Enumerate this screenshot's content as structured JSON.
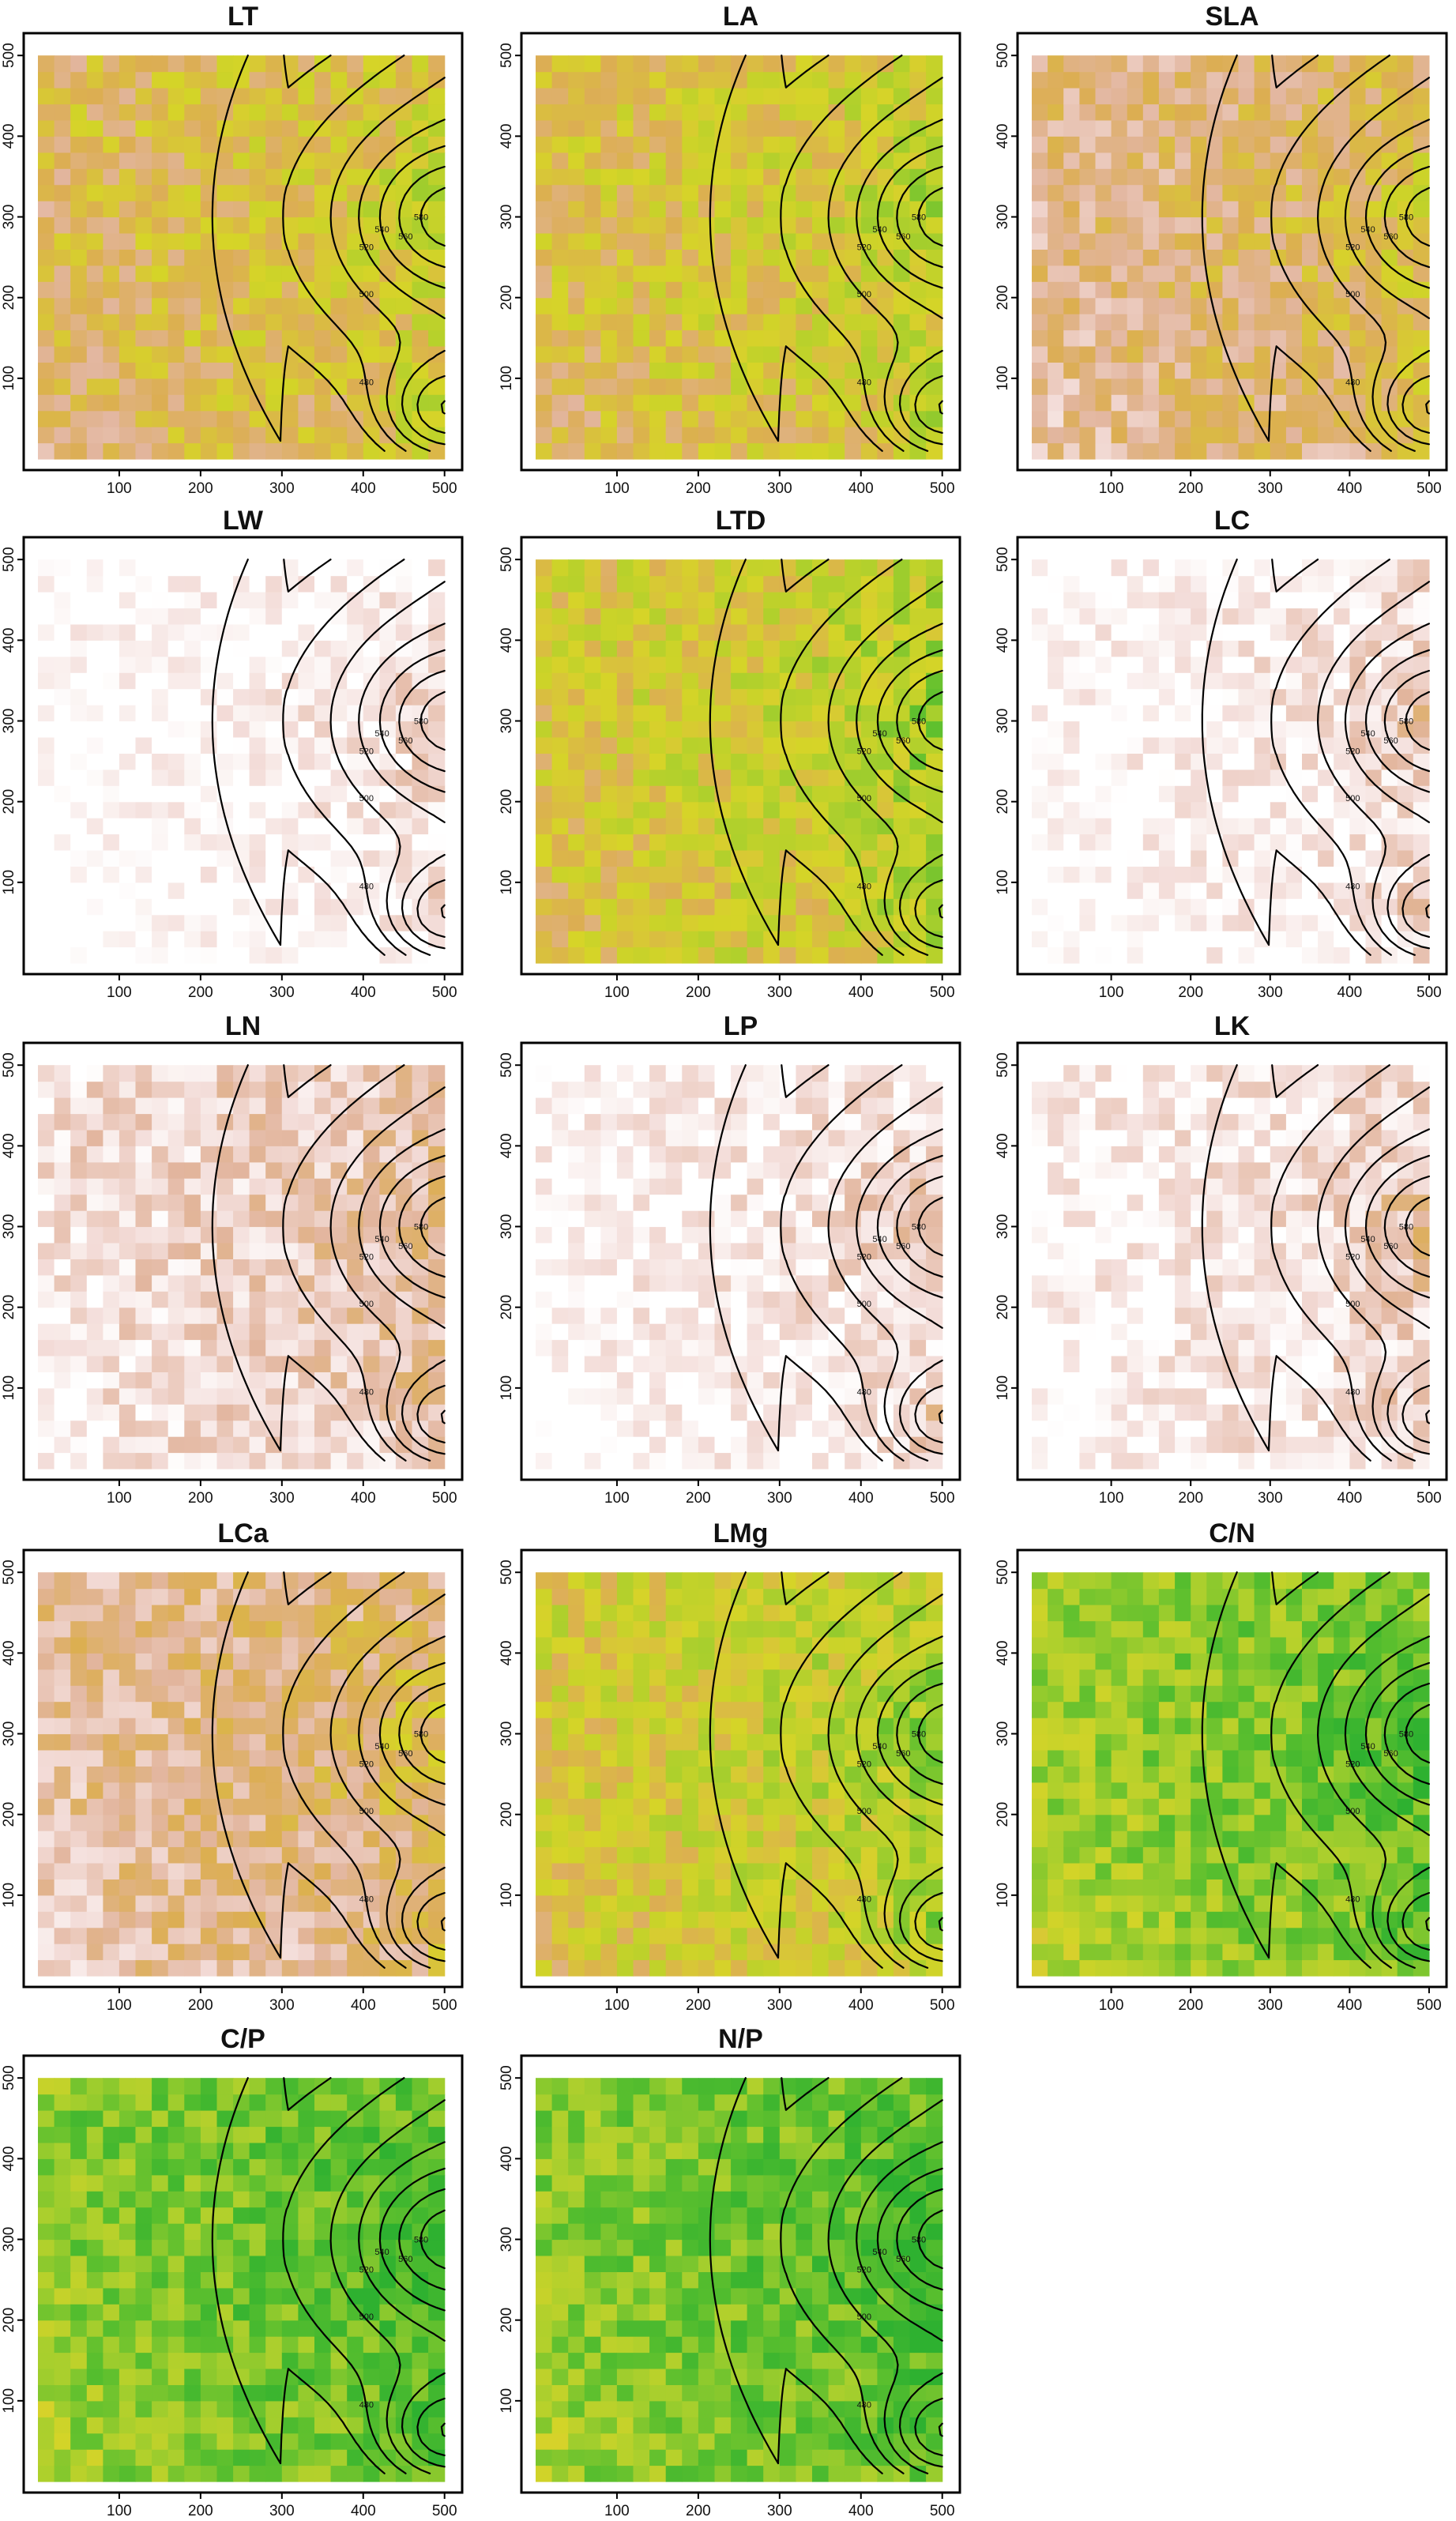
{
  "figure": {
    "colors": {
      "ramp": [
        "#2eb130",
        "#5bbf2e",
        "#a9cf2d",
        "#d6d428",
        "#dcae52",
        "#e2b59d",
        "#f3dcd8",
        "#ffffff"
      ],
      "contour": "#000000",
      "frame": "#000000"
    }
  },
  "chart_data": [
    {
      "type": "heatmap",
      "title": "LT",
      "ramp_shift": 0.0,
      "x_ticks": [
        100,
        200,
        300,
        400,
        500
      ],
      "y_ticks": [
        100,
        200,
        300,
        400,
        500
      ],
      "xlim": [
        0,
        510
      ],
      "ylim": [
        0,
        510
      ],
      "contour_levels": [
        460,
        480,
        500,
        520,
        540,
        560,
        580,
        600,
        620
      ]
    },
    {
      "type": "heatmap",
      "title": "LA",
      "ramp_shift": -0.05,
      "x_ticks": [
        100,
        200,
        300,
        400,
        500
      ],
      "y_ticks": [
        100,
        200,
        300,
        400,
        500
      ],
      "xlim": [
        0,
        510
      ],
      "ylim": [
        0,
        510
      ],
      "contour_levels": [
        460,
        480,
        500,
        520,
        540,
        560,
        580,
        600,
        620
      ]
    },
    {
      "type": "heatmap",
      "title": "SLA",
      "ramp_shift": 0.1,
      "x_ticks": [
        100,
        200,
        300,
        400,
        500
      ],
      "y_ticks": [
        100,
        200,
        300,
        400,
        500
      ],
      "xlim": [
        0,
        510
      ],
      "ylim": [
        0,
        510
      ],
      "contour_levels": [
        460,
        480,
        500,
        520,
        540,
        560,
        580,
        600,
        620
      ]
    },
    {
      "type": "heatmap",
      "title": "LW",
      "ramp_shift": 0.45,
      "x_ticks": [
        100,
        200,
        300,
        400,
        500
      ],
      "y_ticks": [
        100,
        200,
        300,
        400,
        500
      ],
      "xlim": [
        0,
        510
      ],
      "ylim": [
        0,
        510
      ],
      "contour_levels": [
        460,
        480,
        500,
        520,
        540,
        560,
        580,
        600,
        620
      ]
    },
    {
      "type": "heatmap",
      "title": "LTD",
      "ramp_shift": -0.1,
      "x_ticks": [
        100,
        200,
        300,
        400,
        500
      ],
      "y_ticks": [
        100,
        200,
        300,
        400,
        500
      ],
      "xlim": [
        0,
        510
      ],
      "ylim": [
        0,
        510
      ],
      "contour_levels": [
        460,
        480,
        500,
        520,
        540,
        560,
        580,
        600,
        620
      ]
    },
    {
      "type": "heatmap",
      "title": "LC",
      "ramp_shift": 0.42,
      "x_ticks": [
        100,
        200,
        300,
        400,
        500
      ],
      "y_ticks": [
        100,
        200,
        300,
        400,
        500
      ],
      "xlim": [
        0,
        510
      ],
      "ylim": [
        0,
        510
      ],
      "contour_levels": [
        460,
        480,
        500,
        520,
        540,
        560,
        580,
        600,
        620
      ]
    },
    {
      "type": "heatmap",
      "title": "LN",
      "ramp_shift": 0.3,
      "x_ticks": [
        100,
        200,
        300,
        400,
        500
      ],
      "y_ticks": [
        100,
        200,
        300,
        400,
        500
      ],
      "xlim": [
        0,
        510
      ],
      "ylim": [
        0,
        510
      ],
      "contour_levels": [
        460,
        480,
        500,
        520,
        540,
        560,
        580,
        600,
        620
      ]
    },
    {
      "type": "heatmap",
      "title": "LP",
      "ramp_shift": 0.4,
      "x_ticks": [
        100,
        200,
        300,
        400,
        500
      ],
      "y_ticks": [
        100,
        200,
        300,
        400,
        500
      ],
      "xlim": [
        0,
        510
      ],
      "ylim": [
        0,
        510
      ],
      "contour_levels": [
        460,
        480,
        500,
        520,
        540,
        560,
        580,
        600,
        620
      ]
    },
    {
      "type": "heatmap",
      "title": "LK",
      "ramp_shift": 0.38,
      "x_ticks": [
        100,
        200,
        300,
        400,
        500
      ],
      "y_ticks": [
        100,
        200,
        300,
        400,
        500
      ],
      "xlim": [
        0,
        510
      ],
      "ylim": [
        0,
        510
      ],
      "contour_levels": [
        460,
        480,
        500,
        520,
        540,
        560,
        580,
        600,
        620
      ]
    },
    {
      "type": "heatmap",
      "title": "LCa",
      "ramp_shift": 0.15,
      "x_ticks": [
        100,
        200,
        300,
        400,
        500
      ],
      "y_ticks": [
        100,
        200,
        300,
        400,
        500
      ],
      "xlim": [
        0,
        510
      ],
      "ylim": [
        0,
        510
      ],
      "contour_levels": [
        460,
        480,
        500,
        520,
        540,
        560,
        580,
        600,
        620
      ]
    },
    {
      "type": "heatmap",
      "title": "LMg",
      "ramp_shift": -0.12,
      "x_ticks": [
        100,
        200,
        300,
        400,
        500
      ],
      "y_ticks": [
        100,
        200,
        300,
        400,
        500
      ],
      "xlim": [
        0,
        510
      ],
      "ylim": [
        0,
        510
      ],
      "contour_levels": [
        460,
        480,
        500,
        520,
        540,
        560,
        580,
        600,
        620
      ]
    },
    {
      "type": "heatmap",
      "title": "C/N",
      "ramp_shift": -0.3,
      "x_ticks": [
        100,
        200,
        300,
        400,
        500
      ],
      "y_ticks": [
        100,
        200,
        300,
        400,
        500
      ],
      "xlim": [
        0,
        510
      ],
      "ylim": [
        0,
        510
      ],
      "contour_levels": [
        460,
        480,
        500,
        520,
        540,
        560,
        580,
        600,
        620
      ]
    },
    {
      "type": "heatmap",
      "title": "C/P",
      "ramp_shift": -0.35,
      "x_ticks": [
        100,
        200,
        300,
        400,
        500
      ],
      "y_ticks": [
        100,
        200,
        300,
        400,
        500
      ],
      "xlim": [
        0,
        510
      ],
      "ylim": [
        0,
        510
      ],
      "contour_levels": [
        460,
        480,
        500,
        520,
        540,
        560,
        580,
        600,
        620
      ]
    },
    {
      "type": "heatmap",
      "title": "N/P",
      "ramp_shift": -0.35,
      "x_ticks": [
        100,
        200,
        300,
        400,
        500
      ],
      "y_ticks": [
        100,
        200,
        300,
        400,
        500
      ],
      "xlim": [
        0,
        510
      ],
      "ylim": [
        0,
        510
      ],
      "contour_levels": [
        460,
        480,
        500,
        520,
        540,
        560,
        580,
        600,
        620
      ]
    }
  ]
}
